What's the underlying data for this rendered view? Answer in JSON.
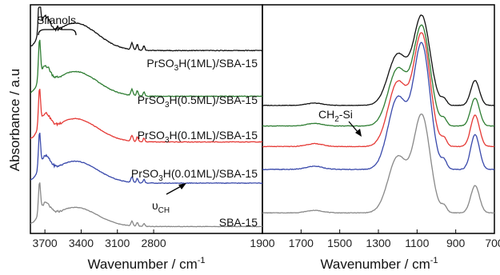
{
  "chart_data": [
    {
      "type": "line",
      "panel": "left",
      "xlabel": "Wavenumber / cm",
      "xlabel_sup": "-1",
      "ylabel": "Absorbance / a.u",
      "xlim": [
        3820,
        1900
      ],
      "x_reversed": true,
      "xticks": [
        3700,
        3400,
        3100,
        2800,
        1900
      ],
      "series": [
        {
          "name": "PrSO3H(1ML)/SBA-15",
          "label_main": "PrSO",
          "label_sub": "3",
          "label_rest": "H(1ML)/SBA-15",
          "color": "#111111",
          "offset": 0.8,
          "amp": 1.0
        },
        {
          "name": "PrSO3H(0.5ML)/SBA-15",
          "label_main": "PrSO",
          "label_sub": "3",
          "label_rest": "H(0.5ML)/SBA-15",
          "color": "#2e7d32",
          "offset": 0.6,
          "amp": 0.9
        },
        {
          "name": "PrSO3H(0.1ML)/SBA-15",
          "label_main": "PrSO",
          "label_sub": "3",
          "label_rest": "H(0.1ML)/SBA-15",
          "color": "#e53935",
          "offset": 0.4,
          "amp": 0.85
        },
        {
          "name": "PrSO3H(0.01ML)/SBA-15",
          "label_main": "PrSO",
          "label_sub": "3",
          "label_rest": "H(0.01ML)/SBA-15",
          "color": "#3949ab",
          "offset": 0.22,
          "amp": 0.8
        },
        {
          "name": "SBA-15",
          "label_main": "SBA-15",
          "label_sub": "",
          "label_rest": "",
          "color": "#888888",
          "offset": 0.03,
          "amp": 0.7
        }
      ],
      "annotations": [
        {
          "text": "Silanols"
        },
        {
          "text_main": "υ",
          "text_sub": "CH"
        }
      ]
    },
    {
      "type": "line",
      "panel": "right",
      "xlabel": "Wavenumber / cm",
      "xlabel_sup": "-1",
      "xlim": [
        1900,
        700
      ],
      "x_reversed": true,
      "xticks": [
        1900,
        1700,
        1500,
        1300,
        1100,
        900,
        700
      ],
      "series": [
        {
          "name": "PrSO3H(1ML)/SBA-15",
          "color": "#111111",
          "offset": 0.56,
          "peak": 0.98
        },
        {
          "name": "PrSO3H(0.5ML)/SBA-15",
          "color": "#2e7d32",
          "offset": 0.47,
          "peak": 0.94
        },
        {
          "name": "PrSO3H(0.1ML)/SBA-15",
          "color": "#e53935",
          "offset": 0.38,
          "peak": 0.91
        },
        {
          "name": "PrSO3H(0.01ML)/SBA-15",
          "color": "#3949ab",
          "offset": 0.28,
          "peak": 0.87
        },
        {
          "name": "SBA-15",
          "color": "#888888",
          "offset": 0.09,
          "peak": 0.55
        }
      ],
      "annotations": [
        {
          "text_main": "CH",
          "text_sub": "2",
          "text_rest": "-Si"
        }
      ]
    }
  ]
}
